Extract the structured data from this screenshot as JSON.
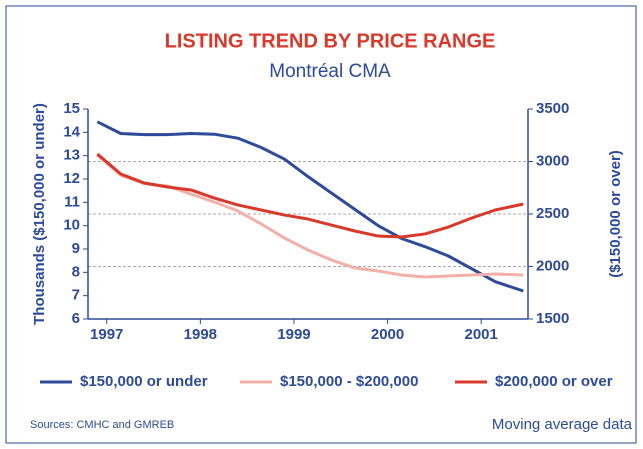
{
  "chart_data": {
    "type": "line",
    "title": "LISTING TREND BY PRICE RANGE",
    "subtitle": "Montréal CMA",
    "y_label": "Thousands ($150,000 or under)",
    "y2_label": "($150,000 or over)",
    "source": "Sources: CMHC and GMREB",
    "note": "Moving average data",
    "x": [
      1996.9,
      1997.15,
      1997.4,
      1997.65,
      1997.9,
      1998.15,
      1998.4,
      1998.65,
      1998.9,
      1999.15,
      1999.4,
      1999.65,
      1999.9,
      2000.15,
      2000.4,
      2000.65,
      2000.9,
      2001.15,
      2001.45
    ],
    "xlim": [
      1996.8,
      2001.5
    ],
    "xticks": [
      1997,
      1998,
      1999,
      2000,
      2001
    ],
    "ylim": [
      6,
      15
    ],
    "yticks": [
      6,
      7,
      8,
      9,
      10,
      11,
      12,
      13,
      14,
      15
    ],
    "y2lim": [
      1500,
      3500
    ],
    "y2ticks": [
      1500,
      2000,
      2500,
      3000,
      3500
    ],
    "grid": true,
    "series": [
      {
        "name": "$150,000 or under",
        "color": "#2e4a9a",
        "axis": "y",
        "values": [
          14.45,
          13.95,
          13.9,
          13.9,
          13.95,
          13.92,
          13.75,
          13.35,
          12.85,
          12.1,
          11.4,
          10.7,
          10.0,
          9.45,
          9.1,
          8.7,
          8.15,
          7.6,
          7.2
        ]
      },
      {
        "name": "$150,000 - $200,000",
        "color": "#f4b0a8",
        "axis": "y2",
        "values": [
          3060,
          2870,
          2790,
          2767,
          2690,
          2614,
          2529,
          2405,
          2271,
          2157,
          2062,
          1986,
          1957,
          1919,
          1900,
          1910,
          1919,
          1929,
          1919
        ]
      },
      {
        "name": "$200,000 or over",
        "color": "#d9392b",
        "axis": "y2",
        "values": [
          3071,
          2881,
          2795,
          2757,
          2729,
          2652,
          2586,
          2538,
          2490,
          2452,
          2395,
          2338,
          2290,
          2281,
          2310,
          2376,
          2462,
          2538,
          2595
        ]
      }
    ]
  }
}
